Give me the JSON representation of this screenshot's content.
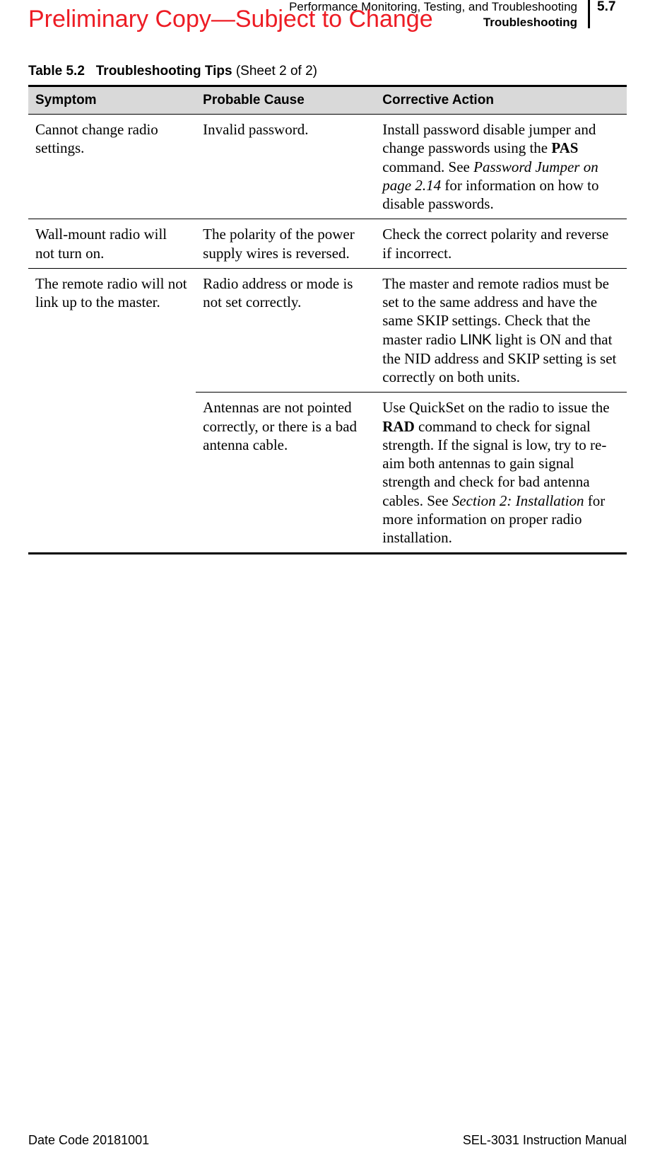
{
  "watermark": "Preliminary Copy—Subject to Change",
  "header": {
    "chapter": "Performance Monitoring, Testing, and Troubleshooting",
    "section": "Troubleshooting",
    "page_number": "5.7"
  },
  "table": {
    "caption_label": "Table 5.2",
    "caption_title": "Troubleshooting Tips",
    "caption_sheet": "(Sheet 2 of 2)",
    "columns": [
      "Symptom",
      "Probable Cause",
      "Corrective Action"
    ],
    "border_color": "#000000",
    "header_bg": "#d9d9d9",
    "body_fontsize": 21,
    "header_fontsize": 19,
    "rows": [
      {
        "symptom": "Cannot change radio settings.",
        "cause": "Invalid password.",
        "action_pre": "Install password disable jumper and change passwords using the ",
        "action_bold1": "PAS",
        "action_mid1": " command. See ",
        "action_italic1": "Password Jumper on page 2.14",
        "action_post": " for information on how to disable passwords."
      },
      {
        "symptom": "Wall-mount radio will not turn on.",
        "cause": "The polarity of the power supply wires is reversed.",
        "action_plain": "Check the correct polarity and reverse if incorrect."
      },
      {
        "symptom": "The remote radio will not link up to the master.",
        "cause": "Radio address or mode is not set correctly.",
        "action_pre": "The master and remote radios must be set to the same address and have the same SKIP settings. Check that the master radio ",
        "action_sans": "LINK",
        "action_post": " light is ON and that the NID address and SKIP setting is set correctly on both units."
      },
      {
        "symptom_continued": true,
        "cause": "Antennas are not pointed correctly, or there is a bad antenna cable.",
        "action_pre": "Use QuickSet on the radio to issue the ",
        "action_bold1": "RAD",
        "action_mid1": " command to check for signal strength. If the signal is low, try to re-aim both antennas to gain signal strength and check for bad antenna cables. See ",
        "action_italic1": "Section 2: Installation",
        "action_post": " for more information on proper radio installation."
      }
    ]
  },
  "footer": {
    "left": "Date Code 20181001",
    "right": "SEL-3031 Instruction Manual"
  }
}
